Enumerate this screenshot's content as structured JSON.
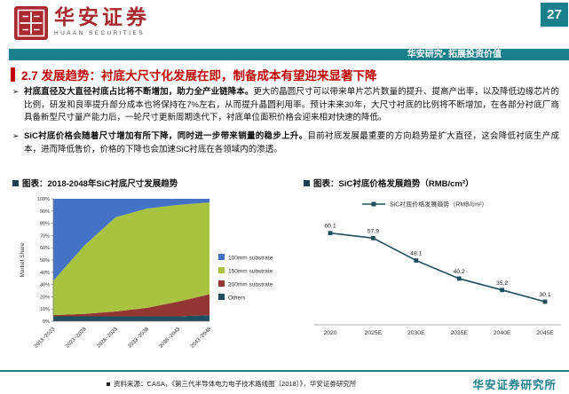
{
  "page": {
    "number": "27",
    "banner": "华安研究• 拓展投资价值",
    "title": "2.7 发展趋势：衬底大尺寸化发展在即，制备成本有望迎来显著下降",
    "footer": {
      "source": "资料来源：CASA，《第三代半导体电力电子技术路线图（2018）》，华安证券研究所",
      "org": "华安证券研究所"
    }
  },
  "logo": {
    "cn": "华安证券",
    "en": "HUAAN SECURITIES"
  },
  "colors": {
    "accent_teal": "#1b7f8c",
    "accent_red": "#c00000",
    "logo_red": "#a8292e"
  },
  "bullet_marker": "➢",
  "bullets": [
    {
      "lead": "衬底直径及大直径衬底占比将不断增加，助力全产业链降本。",
      "body": "更大的晶圆尺寸可以带来单片芯片数量的提升、提高产出率，以及降低边缘芯片的比例，研发和良率提升部分成本也将保持在7%左右，从而提升晶圆利用率。预计未来30年，大尺寸衬底的比例将不断增加，在各部分衬底厂商具备新型尺寸量产能力后，一轮尺寸更新周期迭代下，衬底单位面积价格会迎来相对快速的降低。"
    },
    {
      "lead": "SiC衬底价格会随着尺寸增加有所下降，同时进一步带来销量的稳步上升。",
      "body": "目前衬底发展最重要的方向趋势是扩大直径，这会降低衬底生产成本，进而降低售价，价格的下降也会加速SiC衬底在各领域内的渗透。"
    }
  ],
  "chart_data": [
    {
      "type": "area",
      "title": "图表：2018-2048年SiC衬底尺寸发展趋势",
      "ylabel": "Market Share",
      "ylim": [
        0,
        100
      ],
      "yticks": [
        "0%",
        "10%",
        "20%",
        "30%",
        "40%",
        "50%",
        "60%",
        "70%",
        "80%",
        "90%",
        "100%"
      ],
      "categories": [
        "2018~2023",
        "2023~2028",
        "2028~2033",
        "2033~2038",
        "2038~2043",
        "2043~2048"
      ],
      "series": [
        {
          "name": "100mm substrate",
          "color": "#4472c4",
          "values": [
            67,
            38,
            15,
            8,
            5,
            3
          ]
        },
        {
          "name": "150mm substrate",
          "color": "#a9c23f",
          "values": [
            28,
            56,
            77,
            81,
            79,
            75
          ]
        },
        {
          "name": "200mm substrate",
          "color": "#943634",
          "values": [
            1,
            2,
            4,
            7,
            12,
            17
          ]
        },
        {
          "name": "Others",
          "color": "#1f4e5f",
          "values": [
            4,
            4,
            4,
            4,
            4,
            5
          ]
        }
      ],
      "legend_position": "right",
      "grid": false
    },
    {
      "type": "line",
      "title": "图表：SiC衬底价格发展趋势（RMB/cm²）",
      "legend": "SiC衬底价格发展趋势（RMB/cm²）",
      "categories": [
        "2020",
        "2025E",
        "2030E",
        "2035E",
        "2040E",
        "2045E"
      ],
      "values": [
        60.1,
        57.9,
        48.1,
        40.2,
        35.2,
        30.1
      ],
      "color": "#1f4e5f",
      "ylim": [
        20,
        65
      ],
      "grid": false,
      "legend_position": "top"
    }
  ]
}
